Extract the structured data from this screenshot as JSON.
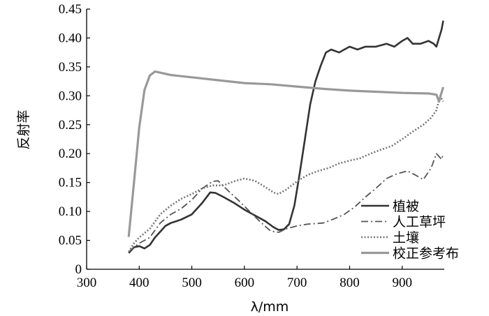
{
  "chart_data": {
    "type": "line",
    "title": "",
    "xlabel": "λ/mm",
    "ylabel": "反射率",
    "xlim": [
      300,
      980
    ],
    "ylim": [
      0,
      0.45
    ],
    "xticks": [
      "300",
      "400",
      "500",
      "600",
      "700",
      "800",
      "900"
    ],
    "yticks": [
      "0",
      "0.05",
      "0.10",
      "0.15",
      "0.20",
      "0.25",
      "0.30",
      "0.35",
      "0.40",
      "0.45"
    ],
    "grid": false,
    "legend_position": "bottom-right",
    "series": [
      {
        "name": "植被",
        "style": "solid",
        "color": "#333333",
        "points": [
          [
            380,
            0.028
          ],
          [
            390,
            0.038
          ],
          [
            400,
            0.04
          ],
          [
            410,
            0.036
          ],
          [
            420,
            0.042
          ],
          [
            430,
            0.055
          ],
          [
            440,
            0.065
          ],
          [
            450,
            0.075
          ],
          [
            460,
            0.08
          ],
          [
            480,
            0.086
          ],
          [
            500,
            0.095
          ],
          [
            520,
            0.115
          ],
          [
            535,
            0.133
          ],
          [
            545,
            0.132
          ],
          [
            560,
            0.125
          ],
          [
            580,
            0.115
          ],
          [
            600,
            0.103
          ],
          [
            620,
            0.093
          ],
          [
            640,
            0.083
          ],
          [
            655,
            0.073
          ],
          [
            665,
            0.068
          ],
          [
            675,
            0.069
          ],
          [
            685,
            0.078
          ],
          [
            695,
            0.11
          ],
          [
            705,
            0.165
          ],
          [
            715,
            0.225
          ],
          [
            725,
            0.285
          ],
          [
            735,
            0.325
          ],
          [
            745,
            0.352
          ],
          [
            755,
            0.375
          ],
          [
            765,
            0.38
          ],
          [
            780,
            0.375
          ],
          [
            790,
            0.38
          ],
          [
            800,
            0.385
          ],
          [
            815,
            0.38
          ],
          [
            830,
            0.385
          ],
          [
            850,
            0.385
          ],
          [
            870,
            0.39
          ],
          [
            885,
            0.385
          ],
          [
            900,
            0.395
          ],
          [
            910,
            0.4
          ],
          [
            920,
            0.39
          ],
          [
            935,
            0.39
          ],
          [
            950,
            0.395
          ],
          [
            960,
            0.39
          ],
          [
            965,
            0.385
          ],
          [
            970,
            0.4
          ],
          [
            975,
            0.415
          ],
          [
            978,
            0.43
          ]
        ]
      },
      {
        "name": "人工草坪",
        "style": "dashdot",
        "color": "#555555",
        "points": [
          [
            380,
            0.03
          ],
          [
            390,
            0.038
          ],
          [
            400,
            0.045
          ],
          [
            420,
            0.055
          ],
          [
            440,
            0.08
          ],
          [
            460,
            0.095
          ],
          [
            480,
            0.105
          ],
          [
            500,
            0.12
          ],
          [
            520,
            0.14
          ],
          [
            540,
            0.152
          ],
          [
            550,
            0.153
          ],
          [
            570,
            0.135
          ],
          [
            590,
            0.118
          ],
          [
            610,
            0.1
          ],
          [
            630,
            0.082
          ],
          [
            650,
            0.066
          ],
          [
            665,
            0.064
          ],
          [
            680,
            0.07
          ],
          [
            700,
            0.075
          ],
          [
            720,
            0.078
          ],
          [
            750,
            0.08
          ],
          [
            770,
            0.087
          ],
          [
            790,
            0.095
          ],
          [
            810,
            0.108
          ],
          [
            830,
            0.125
          ],
          [
            850,
            0.14
          ],
          [
            870,
            0.157
          ],
          [
            890,
            0.165
          ],
          [
            910,
            0.17
          ],
          [
            925,
            0.163
          ],
          [
            940,
            0.155
          ],
          [
            955,
            0.175
          ],
          [
            965,
            0.2
          ],
          [
            970,
            0.195
          ],
          [
            975,
            0.19
          ],
          [
            978,
            0.2
          ]
        ]
      },
      {
        "name": "土壤",
        "style": "dotted",
        "color": "#777777",
        "points": [
          [
            380,
            0.03
          ],
          [
            390,
            0.045
          ],
          [
            400,
            0.055
          ],
          [
            420,
            0.07
          ],
          [
            440,
            0.095
          ],
          [
            460,
            0.11
          ],
          [
            480,
            0.122
          ],
          [
            500,
            0.13
          ],
          [
            520,
            0.14
          ],
          [
            540,
            0.145
          ],
          [
            560,
            0.145
          ],
          [
            580,
            0.152
          ],
          [
            600,
            0.157
          ],
          [
            620,
            0.153
          ],
          [
            640,
            0.142
          ],
          [
            655,
            0.133
          ],
          [
            665,
            0.13
          ],
          [
            680,
            0.138
          ],
          [
            700,
            0.152
          ],
          [
            720,
            0.163
          ],
          [
            740,
            0.17
          ],
          [
            760,
            0.175
          ],
          [
            780,
            0.183
          ],
          [
            800,
            0.188
          ],
          [
            820,
            0.192
          ],
          [
            840,
            0.2
          ],
          [
            860,
            0.207
          ],
          [
            880,
            0.213
          ],
          [
            900,
            0.225
          ],
          [
            920,
            0.238
          ],
          [
            940,
            0.25
          ],
          [
            955,
            0.262
          ],
          [
            965,
            0.275
          ],
          [
            972,
            0.3
          ],
          [
            978,
            0.29
          ]
        ]
      },
      {
        "name": "校正参考布",
        "style": "solid",
        "color": "#999999",
        "points": [
          [
            380,
            0.056
          ],
          [
            390,
            0.15
          ],
          [
            400,
            0.245
          ],
          [
            410,
            0.31
          ],
          [
            420,
            0.335
          ],
          [
            430,
            0.342
          ],
          [
            440,
            0.34
          ],
          [
            460,
            0.336
          ],
          [
            480,
            0.334
          ],
          [
            500,
            0.332
          ],
          [
            550,
            0.327
          ],
          [
            600,
            0.322
          ],
          [
            650,
            0.32
          ],
          [
            700,
            0.316
          ],
          [
            750,
            0.312
          ],
          [
            800,
            0.309
          ],
          [
            850,
            0.307
          ],
          [
            900,
            0.305
          ],
          [
            950,
            0.304
          ],
          [
            965,
            0.302
          ],
          [
            970,
            0.29
          ],
          [
            973,
            0.3
          ],
          [
            978,
            0.315
          ]
        ]
      }
    ]
  }
}
